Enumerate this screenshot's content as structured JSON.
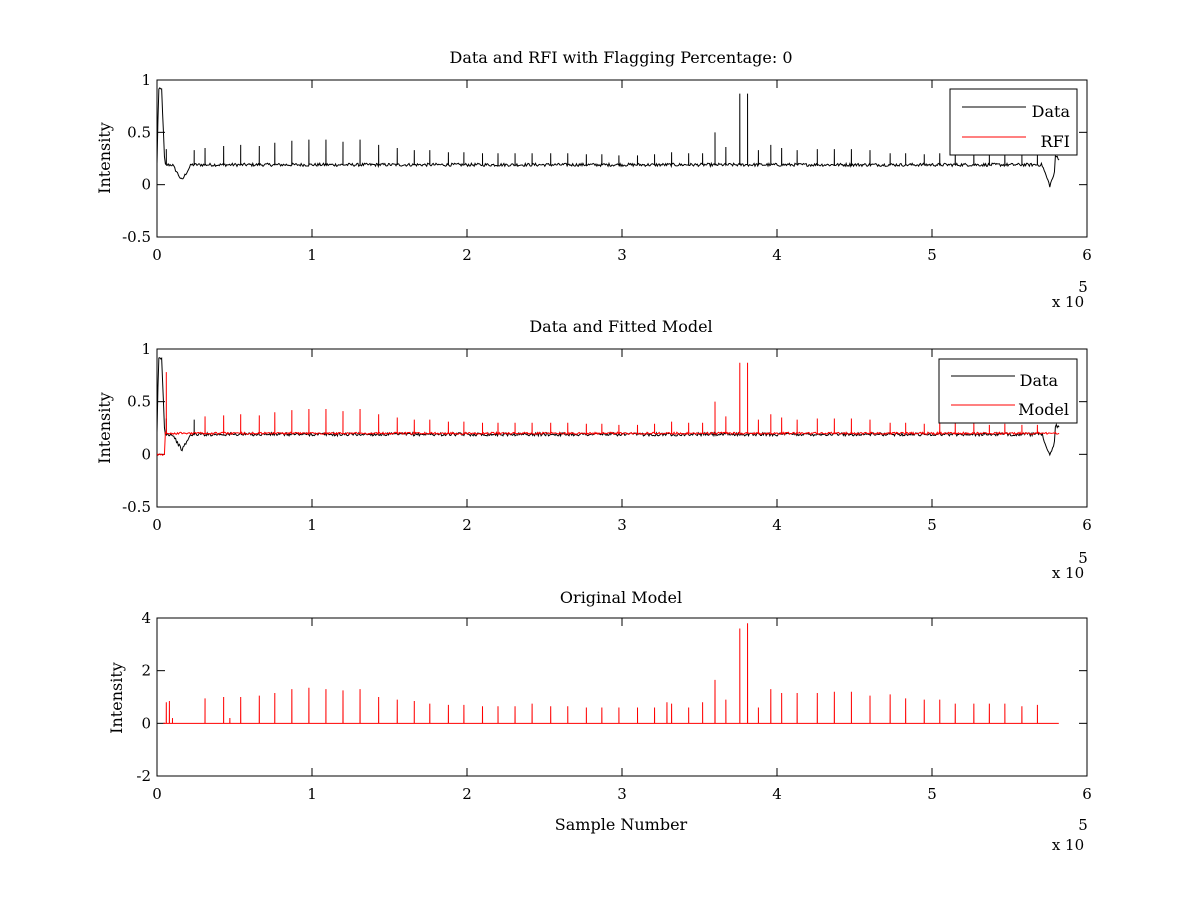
{
  "colors": {
    "data": "#000000",
    "model": "#ff0000",
    "axes": "#000000",
    "background": "#ffffff"
  },
  "chart_data": [
    {
      "type": "line",
      "title": "Data and RFI with Flagging Percentage: 0",
      "xlabel": "",
      "ylabel": "Intensity",
      "xlim": [
        0,
        6
      ],
      "ylim": [
        -0.5,
        1
      ],
      "x_ticks": [
        "0",
        "1",
        "2",
        "3",
        "4",
        "5",
        "6"
      ],
      "y_ticks": [
        "-0.5",
        "0",
        "0.5",
        "1"
      ],
      "x_exponent": {
        "base": "x 10",
        "power": "5"
      },
      "legend": {
        "position": "top-right",
        "entries": [
          {
            "name": "Data",
            "color": "#000000"
          },
          {
            "name": "RFI",
            "color": "#ff0000"
          }
        ]
      },
      "series": [
        {
          "name": "Data",
          "color": "#000000",
          "baseline": 0.19,
          "features": {
            "start_peak": 0.91,
            "dip_at": 0.16,
            "dip_value": 0.04,
            "end_dip_at": 5.76,
            "end_dip_value": -0.01,
            "x_end": 5.82
          },
          "spikes": [
            [
              0.06,
              0.34
            ],
            [
              0.24,
              0.33
            ],
            [
              0.31,
              0.35
            ],
            [
              0.43,
              0.37
            ],
            [
              0.54,
              0.38
            ],
            [
              0.66,
              0.37
            ],
            [
              0.76,
              0.4
            ],
            [
              0.87,
              0.42
            ],
            [
              0.98,
              0.43
            ],
            [
              1.09,
              0.43
            ],
            [
              1.2,
              0.41
            ],
            [
              1.31,
              0.43
            ],
            [
              1.43,
              0.38
            ],
            [
              1.55,
              0.35
            ],
            [
              1.66,
              0.33
            ],
            [
              1.76,
              0.33
            ],
            [
              1.88,
              0.31
            ],
            [
              1.98,
              0.31
            ],
            [
              2.1,
              0.3
            ],
            [
              2.2,
              0.3
            ],
            [
              2.31,
              0.3
            ],
            [
              2.42,
              0.3
            ],
            [
              2.54,
              0.3
            ],
            [
              2.65,
              0.3
            ],
            [
              2.77,
              0.29
            ],
            [
              2.87,
              0.29
            ],
            [
              2.98,
              0.28
            ],
            [
              3.1,
              0.28
            ],
            [
              3.21,
              0.29
            ],
            [
              3.32,
              0.31
            ],
            [
              3.43,
              0.3
            ],
            [
              3.52,
              0.3
            ],
            [
              3.6,
              0.5
            ],
            [
              3.67,
              0.36
            ],
            [
              3.76,
              0.87
            ],
            [
              3.81,
              0.87
            ],
            [
              3.88,
              0.33
            ],
            [
              3.96,
              0.38
            ],
            [
              4.03,
              0.35
            ],
            [
              4.13,
              0.33
            ],
            [
              4.26,
              0.34
            ],
            [
              4.37,
              0.34
            ],
            [
              4.48,
              0.34
            ],
            [
              4.6,
              0.33
            ],
            [
              4.73,
              0.3
            ],
            [
              4.83,
              0.3
            ],
            [
              4.95,
              0.29
            ],
            [
              5.05,
              0.3
            ],
            [
              5.15,
              0.3
            ],
            [
              5.27,
              0.3
            ],
            [
              5.37,
              0.28
            ],
            [
              5.47,
              0.29
            ],
            [
              5.58,
              0.28
            ],
            [
              5.68,
              0.28
            ]
          ]
        },
        {
          "name": "RFI",
          "color": "#ff0000",
          "values": []
        }
      ]
    },
    {
      "type": "line",
      "title": "Data and Fitted Model",
      "xlabel": "",
      "ylabel": "Intensity",
      "xlim": [
        0,
        6
      ],
      "ylim": [
        -0.5,
        1
      ],
      "x_ticks": [
        "0",
        "1",
        "2",
        "3",
        "4",
        "5",
        "6"
      ],
      "y_ticks": [
        "-0.5",
        "0",
        "0.5",
        "1"
      ],
      "x_exponent": {
        "base": "x 10",
        "power": "5"
      },
      "legend": {
        "position": "top-right",
        "entries": [
          {
            "name": "Data",
            "color": "#000000"
          },
          {
            "name": "Model",
            "color": "#ff0000"
          }
        ]
      },
      "series": [
        {
          "name": "Data",
          "color": "#000000",
          "baseline": 0.19,
          "features": {
            "start_peak": 0.91,
            "dip_at": 0.16,
            "dip_value": 0.04,
            "end_dip_at": 5.76,
            "end_dip_value": -0.01,
            "x_end": 5.82
          },
          "spikes": [
            [
              0.06,
              0.34
            ],
            [
              0.24,
              0.33
            ]
          ]
        },
        {
          "name": "Model",
          "color": "#ff0000",
          "baseline": 0.2,
          "start_x": 0.05,
          "pre_value": 0.0,
          "spikes": [
            [
              0.06,
              0.78
            ],
            [
              0.31,
              0.36
            ],
            [
              0.43,
              0.37
            ],
            [
              0.54,
              0.38
            ],
            [
              0.66,
              0.37
            ],
            [
              0.76,
              0.4
            ],
            [
              0.87,
              0.42
            ],
            [
              0.98,
              0.43
            ],
            [
              1.09,
              0.43
            ],
            [
              1.2,
              0.41
            ],
            [
              1.31,
              0.43
            ],
            [
              1.43,
              0.38
            ],
            [
              1.55,
              0.35
            ],
            [
              1.66,
              0.33
            ],
            [
              1.76,
              0.33
            ],
            [
              1.88,
              0.31
            ],
            [
              1.98,
              0.31
            ],
            [
              2.1,
              0.3
            ],
            [
              2.2,
              0.3
            ],
            [
              2.31,
              0.3
            ],
            [
              2.42,
              0.3
            ],
            [
              2.54,
              0.3
            ],
            [
              2.65,
              0.3
            ],
            [
              2.77,
              0.29
            ],
            [
              2.87,
              0.29
            ],
            [
              2.98,
              0.28
            ],
            [
              3.1,
              0.28
            ],
            [
              3.21,
              0.29
            ],
            [
              3.32,
              0.31
            ],
            [
              3.43,
              0.3
            ],
            [
              3.52,
              0.3
            ],
            [
              3.6,
              0.5
            ],
            [
              3.67,
              0.36
            ],
            [
              3.76,
              0.87
            ],
            [
              3.81,
              0.87
            ],
            [
              3.88,
              0.33
            ],
            [
              3.96,
              0.38
            ],
            [
              4.03,
              0.35
            ],
            [
              4.13,
              0.33
            ],
            [
              4.26,
              0.34
            ],
            [
              4.37,
              0.34
            ],
            [
              4.48,
              0.34
            ],
            [
              4.6,
              0.33
            ],
            [
              4.73,
              0.3
            ],
            [
              4.83,
              0.3
            ],
            [
              4.95,
              0.29
            ],
            [
              5.05,
              0.3
            ],
            [
              5.15,
              0.3
            ],
            [
              5.27,
              0.3
            ],
            [
              5.37,
              0.28
            ],
            [
              5.47,
              0.29
            ],
            [
              5.58,
              0.28
            ],
            [
              5.68,
              0.28
            ]
          ]
        }
      ]
    },
    {
      "type": "line",
      "title": "Original Model",
      "xlabel": "Sample Number",
      "ylabel": "Intensity",
      "xlim": [
        0,
        6
      ],
      "ylim": [
        -2,
        4
      ],
      "x_ticks": [
        "0",
        "1",
        "2",
        "3",
        "4",
        "5",
        "6"
      ],
      "y_ticks": [
        "-2",
        "0",
        "2",
        "4"
      ],
      "x_exponent": {
        "base": "x 10",
        "power": "5"
      },
      "series": [
        {
          "name": "Original Model",
          "color": "#ff0000",
          "baseline": 0.0,
          "x_start": 0.04,
          "x_end": 5.82,
          "spikes": [
            [
              0.06,
              0.8
            ],
            [
              0.08,
              0.85
            ],
            [
              0.1,
              0.2
            ],
            [
              0.31,
              0.95
            ],
            [
              0.43,
              1.0
            ],
            [
              0.47,
              0.2
            ],
            [
              0.54,
              1.0
            ],
            [
              0.66,
              1.05
            ],
            [
              0.76,
              1.15
            ],
            [
              0.87,
              1.3
            ],
            [
              0.98,
              1.35
            ],
            [
              1.09,
              1.3
            ],
            [
              1.2,
              1.25
            ],
            [
              1.31,
              1.3
            ],
            [
              1.43,
              1.0
            ],
            [
              1.55,
              0.9
            ],
            [
              1.66,
              0.85
            ],
            [
              1.76,
              0.75
            ],
            [
              1.88,
              0.7
            ],
            [
              1.98,
              0.7
            ],
            [
              2.1,
              0.65
            ],
            [
              2.2,
              0.65
            ],
            [
              2.31,
              0.65
            ],
            [
              2.42,
              0.75
            ],
            [
              2.54,
              0.65
            ],
            [
              2.65,
              0.65
            ],
            [
              2.77,
              0.6
            ],
            [
              2.87,
              0.6
            ],
            [
              2.98,
              0.6
            ],
            [
              3.1,
              0.6
            ],
            [
              3.21,
              0.6
            ],
            [
              3.29,
              0.8
            ],
            [
              3.32,
              0.75
            ],
            [
              3.43,
              0.6
            ],
            [
              3.52,
              0.8
            ],
            [
              3.6,
              1.65
            ],
            [
              3.67,
              0.9
            ],
            [
              3.76,
              3.6
            ],
            [
              3.81,
              3.8
            ],
            [
              3.88,
              0.6
            ],
            [
              3.96,
              1.3
            ],
            [
              4.03,
              1.15
            ],
            [
              4.13,
              1.15
            ],
            [
              4.26,
              1.15
            ],
            [
              4.37,
              1.2
            ],
            [
              4.48,
              1.2
            ],
            [
              4.6,
              1.05
            ],
            [
              4.73,
              1.1
            ],
            [
              4.83,
              0.95
            ],
            [
              4.95,
              0.9
            ],
            [
              5.05,
              0.9
            ],
            [
              5.15,
              0.75
            ],
            [
              5.27,
              0.75
            ],
            [
              5.37,
              0.75
            ],
            [
              5.47,
              0.75
            ],
            [
              5.58,
              0.65
            ],
            [
              5.68,
              0.7
            ]
          ]
        }
      ]
    }
  ]
}
